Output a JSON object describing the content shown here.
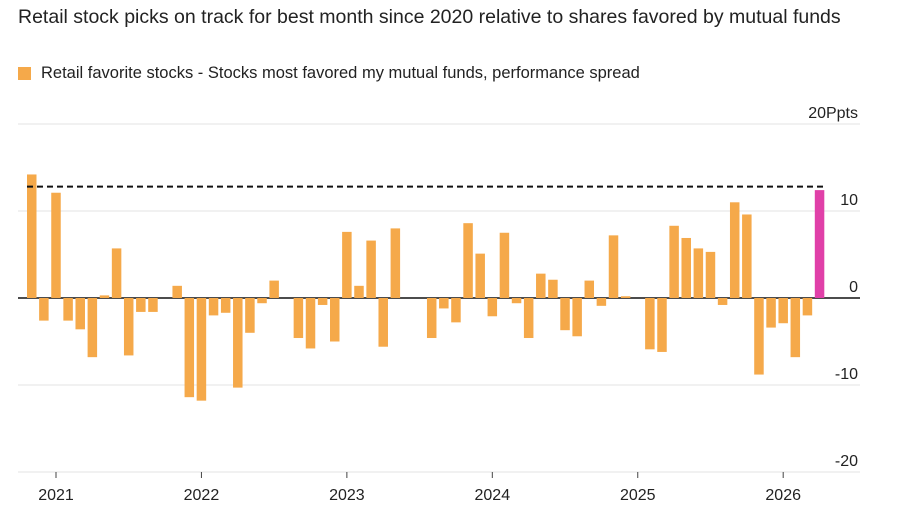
{
  "title": "Retail stock picks on track for best month since 2020 relative to shares favored by mutual funds",
  "legend": {
    "label": "Retail favorite stocks - Stocks most favored my mutual funds, performance spread",
    "color": "#F5A94A"
  },
  "colors": {
    "bar": "#F5A94A",
    "highlight": "#E040A8",
    "grid": "#e3e3e3",
    "zero": "#111111",
    "reference": "#111111"
  },
  "chart_data": {
    "type": "bar",
    "title": "Retail stock picks on track for best month since 2020 relative to shares favored by mutual funds",
    "ylabel": "Ppts",
    "ylim": [
      -20,
      20
    ],
    "y_ticks": [
      {
        "value": 20,
        "label": "20Ppts"
      },
      {
        "value": 10,
        "label": "10"
      },
      {
        "value": 0,
        "label": "0"
      },
      {
        "value": -10,
        "label": "-10"
      },
      {
        "value": -20,
        "label": "-20"
      }
    ],
    "x_ticks": [
      {
        "index": 2,
        "label": "2021"
      },
      {
        "index": 14,
        "label": "2022"
      },
      {
        "index": 26,
        "label": "2023"
      },
      {
        "index": 38,
        "label": "2024"
      },
      {
        "index": 50,
        "label": "2025"
      },
      {
        "index": 62,
        "label": "2026"
      }
    ],
    "reference_line": {
      "value": 12.8,
      "style": "dashed"
    },
    "highlight_index": 65,
    "series": [
      {
        "name": "Retail favorite stocks - Stocks most favored my mutual funds, performance spread",
        "values": [
          14.2,
          -2.6,
          12.1,
          -2.6,
          -3.6,
          -6.8,
          0.3,
          5.7,
          -6.6,
          -1.6,
          -1.6,
          0.0,
          1.4,
          -11.4,
          -11.8,
          -2.0,
          -1.7,
          -10.3,
          -4.0,
          -0.6,
          2.0,
          0.0,
          -4.6,
          -5.8,
          -0.8,
          -5.0,
          7.6,
          1.4,
          6.6,
          -5.6,
          8.0,
          0.0,
          0.0,
          -4.6,
          -1.2,
          -2.8,
          8.6,
          5.1,
          -2.1,
          7.5,
          -0.6,
          -4.6,
          2.8,
          2.1,
          -3.7,
          -4.4,
          2.0,
          -0.9,
          7.2,
          0.2,
          0.0,
          -5.9,
          -6.2,
          8.3,
          6.9,
          5.7,
          5.3,
          -0.8,
          11.0,
          9.6,
          -8.8,
          -3.4,
          -2.9,
          -6.8,
          -2.0,
          12.4
        ]
      }
    ]
  }
}
